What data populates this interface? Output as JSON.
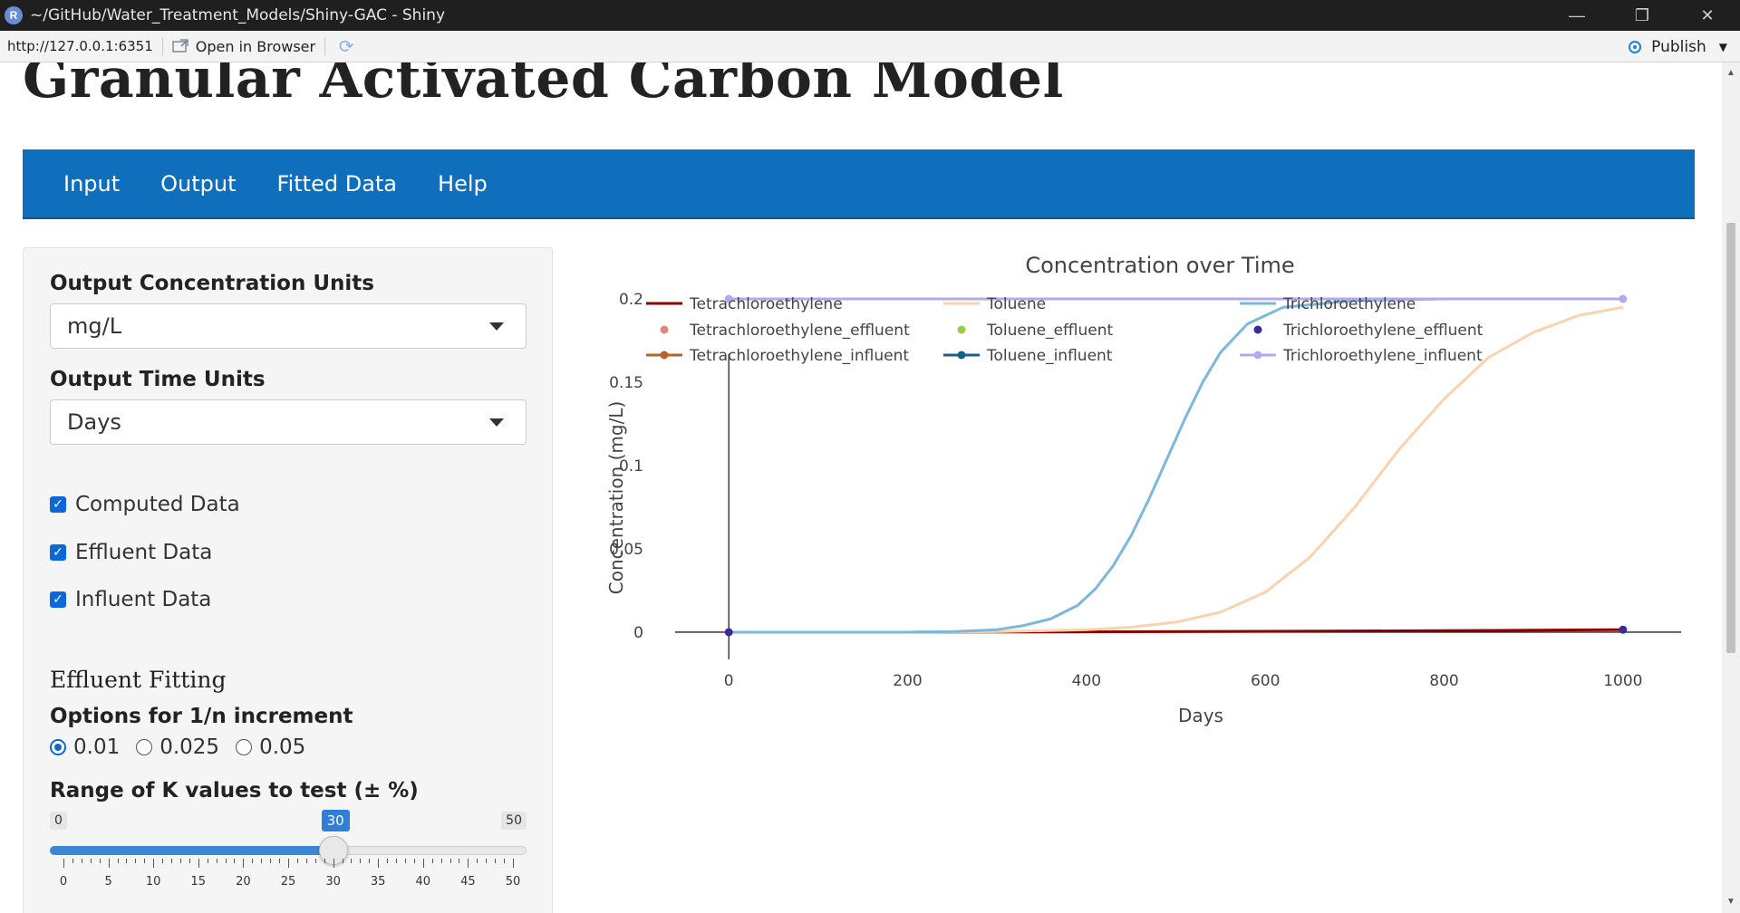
{
  "window": {
    "title": "~/GitHub/Water_Treatment_Models/Shiny-GAC - Shiny",
    "app_icon": "R"
  },
  "address_bar": {
    "url": "http://127.0.0.1:6351",
    "open_in_browser": "Open in Browser",
    "publish": "Publish"
  },
  "page": {
    "title": "Granular Activated Carbon Model",
    "nav": [
      "Input",
      "Output",
      "Fitted Data",
      "Help"
    ]
  },
  "sidebar": {
    "conc_units_label": "Output Concentration Units",
    "conc_units_value": "mg/L",
    "time_units_label": "Output Time Units",
    "time_units_value": "Days",
    "checkboxes": [
      "Computed Data",
      "Effluent Data",
      "Influent Data"
    ],
    "effluent_fitting_heading": "Effluent Fitting",
    "increment_label": "Options for 1/n increment",
    "increment_options": [
      "0.01",
      "0.025",
      "0.05"
    ],
    "increment_selected": "0.01",
    "k_range_label": "Range of K values to test (± %)",
    "slider": {
      "min": "0",
      "max": "50",
      "value": "30",
      "value_num": 30,
      "min_num": 0,
      "max_num": 50,
      "ticks": [
        "0",
        "5",
        "10",
        "15",
        "20",
        "25",
        "30",
        "35",
        "40",
        "45",
        "50"
      ]
    }
  },
  "colors": {
    "nav_blue": "#0f6fbd",
    "checkbox_blue": "#0b68d8",
    "slider_blue": "#3b86d6"
  },
  "chart_data": {
    "type": "line",
    "title": "Concentration over Time",
    "xlabel": "Days",
    "ylabel": "Concentration (mg/L)",
    "xlim": [
      -60,
      1065
    ],
    "ylim": [
      -0.006,
      0.2
    ],
    "xticks": [
      "0",
      "200",
      "400",
      "600",
      "800",
      "1000"
    ],
    "yticks": [
      "0",
      "0.05",
      "0.1",
      "0.15",
      "0.2"
    ],
    "legend_position": "top",
    "legend": [
      [
        "Tetrachloroethylene",
        "Toluene",
        "Trichloroethylene"
      ],
      [
        "Tetrachloroethylene_effluent",
        "Toluene_effluent",
        "Trichloroethylene_effluent"
      ],
      [
        "Tetrachloroethylene_influent",
        "Toluene_influent",
        "Trichloroethylene_influent"
      ]
    ],
    "series": [
      {
        "name": "Tetrachloroethylene",
        "color": "#8b0000",
        "style": "line",
        "x": [
          0,
          200,
          400,
          600,
          800,
          1000
        ],
        "y": [
          0,
          0,
          0.0002,
          0.0005,
          0.0009,
          0.0015
        ]
      },
      {
        "name": "Toluene",
        "color": "#f9d3ad",
        "style": "line",
        "x": [
          0,
          200,
          300,
          400,
          450,
          500,
          550,
          600,
          650,
          700,
          750,
          800,
          850,
          900,
          950,
          1000
        ],
        "y": [
          0,
          0,
          0.0003,
          0.0015,
          0.003,
          0.006,
          0.012,
          0.024,
          0.045,
          0.075,
          0.11,
          0.14,
          0.165,
          0.18,
          0.19,
          0.195
        ]
      },
      {
        "name": "Trichloroethylene",
        "color": "#7ab8dc",
        "style": "line",
        "x": [
          0,
          200,
          250,
          300,
          330,
          360,
          390,
          410,
          430,
          450,
          470,
          490,
          510,
          530,
          550,
          580,
          620,
          700,
          800,
          900,
          1000
        ],
        "y": [
          0,
          0,
          0.0003,
          0.0015,
          0.004,
          0.008,
          0.016,
          0.026,
          0.04,
          0.058,
          0.08,
          0.104,
          0.128,
          0.15,
          0.168,
          0.185,
          0.195,
          0.199,
          0.2,
          0.2,
          0.2
        ]
      },
      {
        "name": "Trichloroethylene_influent",
        "color": "#b4a8ef",
        "style": "line-marker",
        "x": [
          0,
          1000
        ],
        "y": [
          0.2,
          0.2
        ]
      },
      {
        "name": "Trichloroethylene_effluent",
        "color": "#3a2a9a",
        "style": "marker",
        "x": [
          0,
          1000
        ],
        "y": [
          0,
          0.0015
        ]
      }
    ]
  }
}
